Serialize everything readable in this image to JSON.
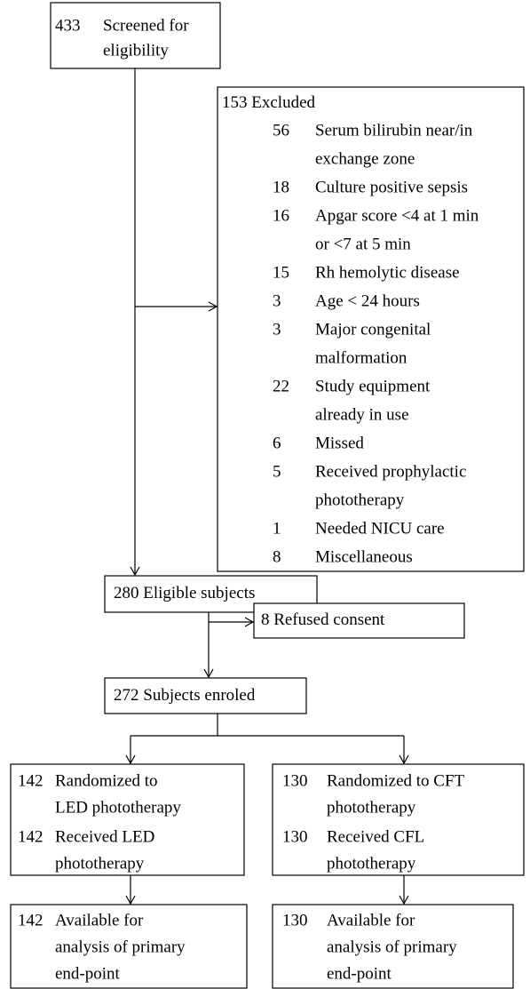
{
  "screened": {
    "count": 433,
    "lines": [
      "Screened for",
      "eligibility"
    ]
  },
  "excluded": {
    "count": 153,
    "label": "Excluded",
    "reasons": [
      {
        "count": 56,
        "lines": [
          "Serum bilirubin near/in",
          "exchange zone"
        ]
      },
      {
        "count": 18,
        "lines": [
          "Culture positive sepsis"
        ]
      },
      {
        "count": 16,
        "lines": [
          "Apgar score <4 at 1 min",
          "or <7 at 5 min"
        ]
      },
      {
        "count": 15,
        "lines": [
          "Rh hemolytic disease"
        ]
      },
      {
        "count": 3,
        "lines": [
          "Age < 24 hours"
        ]
      },
      {
        "count": 3,
        "lines": [
          "Major congenital",
          "malformation"
        ]
      },
      {
        "count": 22,
        "lines": [
          "Study equipment",
          "already in use"
        ]
      },
      {
        "count": 6,
        "lines": [
          "Missed"
        ]
      },
      {
        "count": 5,
        "lines": [
          "Received prophylactic",
          "phototherapy"
        ]
      },
      {
        "count": 1,
        "lines": [
          "Needed NICU care"
        ]
      },
      {
        "count": 8,
        "lines": [
          "Miscellaneous"
        ]
      }
    ]
  },
  "eligible": {
    "count": 280,
    "label": "Eligible subjects"
  },
  "refused": {
    "count": 8,
    "label": "Refused consent"
  },
  "enrolled": {
    "count": 272,
    "label": "Subjects enroled"
  },
  "arms": [
    {
      "entries": [
        {
          "count": 142,
          "lines": [
            "Randomized to",
            "LED phototherapy"
          ]
        },
        {
          "count": 142,
          "lines": [
            "Received LED",
            "phototherapy"
          ]
        }
      ],
      "analysis": {
        "count": 142,
        "lines": [
          "Available for",
          "analysis of primary",
          "end-point"
        ]
      }
    },
    {
      "entries": [
        {
          "count": 130,
          "lines": [
            "Randomized to CFT",
            "phototherapy"
          ]
        },
        {
          "count": 130,
          "lines": [
            "Received CFL",
            "phototherapy"
          ]
        }
      ],
      "analysis": {
        "count": 130,
        "lines": [
          "Available for",
          "analysis of primary",
          "end-point"
        ]
      }
    }
  ]
}
